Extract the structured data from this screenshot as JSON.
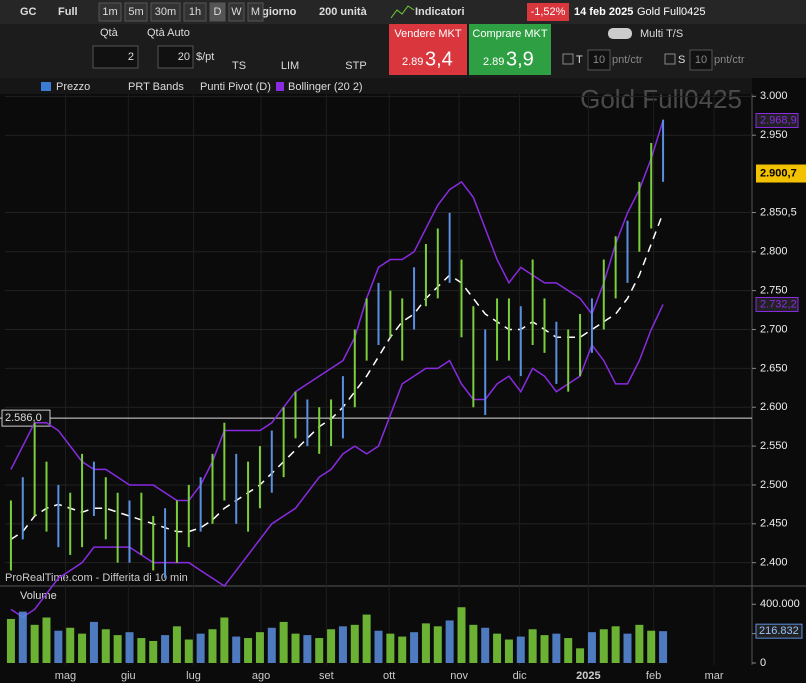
{
  "toolbar": {
    "symbol": "GC",
    "mode": "Full",
    "timeframes": [
      "1m",
      "5m",
      "30m",
      "1h",
      "D",
      "W",
      "M"
    ],
    "period": "1 giorno",
    "units": "200 unità",
    "indicators": "Indicatori",
    "change": "-1,52%",
    "date": "14 feb 2025",
    "instrument": "Gold Full0425"
  },
  "order": {
    "qty_label": "Qtà",
    "qty_auto": "Qtà Auto",
    "qty": 2,
    "per_point": 20,
    "per_point_unit": "$/pt",
    "ts": "TS",
    "lim": "LIM",
    "stp": "STP",
    "sell": {
      "label": "Vendere MKT",
      "prefix": "2.89",
      "price": "3,4"
    },
    "buy": {
      "label": "Comprare MKT",
      "prefix": "2.89",
      "price": "3,9"
    },
    "multi": "Multi T/S",
    "t_label": "T",
    "t_value": 10,
    "t_unit": "pnt/ctr",
    "s_label": "S",
    "s_value": 10,
    "s_unit": "pnt/ctr"
  },
  "legend": [
    "Prezzo",
    "PRT Bands",
    "Punti Pivot (D)",
    "Bollinger (20 2)"
  ],
  "footer": "ProRealTime.com - Differita di 10 min",
  "chart_data": [
    {
      "type": "ohlc",
      "x": [
        0,
        1,
        2,
        3,
        4,
        5,
        6,
        7,
        8,
        9,
        10,
        11,
        12,
        13,
        14,
        15,
        16,
        17,
        18,
        19,
        20,
        21,
        22,
        23,
        24,
        25,
        26,
        27,
        28,
        29,
        30,
        31,
        32,
        33,
        34,
        35,
        36,
        37,
        38,
        39,
        40,
        41,
        42,
        43,
        44,
        45,
        46,
        47,
        48,
        49,
        50,
        51,
        52,
        53,
        54,
        55
      ],
      "xlim": [
        -0.5,
        62.5
      ],
      "xticks": [
        {
          "value": 4.6,
          "label": "mag"
        },
        {
          "value": 9.9,
          "label": "giu"
        },
        {
          "value": 15.4,
          "label": "lug"
        },
        {
          "value": 21.1,
          "label": "ago"
        },
        {
          "value": 26.6,
          "label": "set"
        },
        {
          "value": 31.9,
          "label": "ott"
        },
        {
          "value": 37.8,
          "label": "nov"
        },
        {
          "value": 42.9,
          "label": "dic"
        },
        {
          "value": 48.7,
          "label": "2025"
        },
        {
          "value": 54.2,
          "label": "feb"
        },
        {
          "value": 59.3,
          "label": "mar"
        }
      ],
      "ylim": [
        2370,
        3003
      ],
      "yticks": [
        {
          "value": 3000,
          "label": "3.000"
        },
        {
          "value": 2950,
          "label": "2.950"
        },
        {
          "value": 2850.5,
          "label": "2.850,5"
        },
        {
          "value": 2800,
          "label": "2.800"
        },
        {
          "value": 2750,
          "label": "2.750"
        },
        {
          "value": 2700,
          "label": "2.700"
        },
        {
          "value": 2650,
          "label": "2.650"
        },
        {
          "value": 2600,
          "label": "2.600"
        },
        {
          "value": 2550,
          "label": "2.550"
        },
        {
          "value": 2500,
          "label": "2.500"
        },
        {
          "value": 2450,
          "label": "2.450"
        },
        {
          "value": 2400,
          "label": "2.400"
        }
      ],
      "series": [
        {
          "name": "Prezzo",
          "color": "#7ccf3c",
          "high": [
            2480,
            2510,
            2580,
            2530,
            2500,
            2490,
            2540,
            2530,
            2510,
            2490,
            2480,
            2490,
            2460,
            2470,
            2480,
            2500,
            2510,
            2540,
            2580,
            2540,
            2530,
            2550,
            2570,
            2600,
            2620,
            2610,
            2600,
            2610,
            2640,
            2700,
            2740,
            2760,
            2750,
            2740,
            2780,
            2810,
            2830,
            2850,
            2790,
            2730,
            2700,
            2740,
            2740,
            2730,
            2790,
            2740,
            2710,
            2700,
            2720,
            2740,
            2790,
            2820,
            2840,
            2890,
            2940,
            2970
          ],
          "low": [
            2390,
            2430,
            2460,
            2440,
            2420,
            2410,
            2420,
            2460,
            2430,
            2400,
            2400,
            2410,
            2390,
            2380,
            2400,
            2420,
            2440,
            2450,
            2480,
            2450,
            2440,
            2470,
            2490,
            2510,
            2560,
            2550,
            2540,
            2550,
            2560,
            2600,
            2660,
            2680,
            2690,
            2660,
            2700,
            2730,
            2740,
            2760,
            2690,
            2600,
            2590,
            2660,
            2660,
            2640,
            2680,
            2670,
            2630,
            2620,
            2640,
            2670,
            2700,
            2740,
            2760,
            2800,
            2830,
            2890
          ]
        },
        {
          "name": "Bollinger (20 2)",
          "color": "#8a2be2",
          "upper": [
            2520,
            2550,
            2580,
            2580,
            2570,
            2550,
            2530,
            2520,
            2520,
            2510,
            2500,
            2500,
            2500,
            2490,
            2480,
            2480,
            2500,
            2530,
            2570,
            2570,
            2570,
            2570,
            2580,
            2600,
            2620,
            2630,
            2640,
            2650,
            2660,
            2690,
            2740,
            2780,
            2790,
            2790,
            2800,
            2830,
            2860,
            2880,
            2890,
            2870,
            2830,
            2790,
            2760,
            2780,
            2770,
            2760,
            2760,
            2750,
            2740,
            2720,
            2760,
            2810,
            2850,
            2880,
            2920,
            2968.9
          ],
          "middle": [
            2430,
            2440,
            2460,
            2470,
            2475,
            2470,
            2465,
            2470,
            2470,
            2465,
            2460,
            2455,
            2450,
            2445,
            2440,
            2440,
            2445,
            2455,
            2470,
            2480,
            2490,
            2500,
            2515,
            2530,
            2545,
            2560,
            2575,
            2585,
            2600,
            2620,
            2640,
            2665,
            2690,
            2710,
            2720,
            2740,
            2755,
            2770,
            2760,
            2740,
            2720,
            2710,
            2700,
            2700,
            2710,
            2700,
            2690,
            2690,
            2690,
            2700,
            2710,
            2720,
            2740,
            2770,
            2810,
            2850
          ],
          "lower": [
            2340,
            2330,
            2340,
            2360,
            2380,
            2390,
            2400,
            2420,
            2420,
            2420,
            2420,
            2410,
            2400,
            2400,
            2400,
            2400,
            2390,
            2380,
            2370,
            2390,
            2410,
            2430,
            2450,
            2460,
            2470,
            2490,
            2510,
            2520,
            2540,
            2550,
            2540,
            2550,
            2590,
            2630,
            2640,
            2650,
            2650,
            2660,
            2630,
            2610,
            2610,
            2630,
            2640,
            2620,
            2650,
            2640,
            2620,
            2630,
            2640,
            2680,
            2660,
            2630,
            2630,
            2660,
            2700,
            2732.2
          ],
          "upper_end_label": "2.968,9",
          "lower_end_label": "2.732,2"
        }
      ],
      "current_price": {
        "value": 2900.7,
        "label": "2.900,7"
      },
      "hline": {
        "value": 2586,
        "label": "2.586,0"
      }
    },
    {
      "type": "volume",
      "name": "Volume",
      "color": "#7ccf3c",
      "values": [
        300000,
        350000,
        260000,
        310000,
        220000,
        240000,
        200000,
        280000,
        230000,
        190000,
        210000,
        170000,
        150000,
        190000,
        250000,
        160000,
        200000,
        230000,
        310000,
        180000,
        170000,
        210000,
        240000,
        280000,
        200000,
        190000,
        170000,
        230000,
        250000,
        260000,
        330000,
        220000,
        200000,
        180000,
        210000,
        270000,
        250000,
        290000,
        380000,
        260000,
        240000,
        200000,
        160000,
        180000,
        230000,
        190000,
        200000,
        170000,
        100000,
        210000,
        230000,
        250000,
        200000,
        260000,
        220000,
        216832
      ],
      "end_label": "216.832",
      "ylim": [
        0,
        511000
      ],
      "yticks": [
        {
          "value": 400000,
          "label": "400.000"
        },
        {
          "value": 200000,
          "label": "200.000"
        },
        0
      ]
    }
  ]
}
